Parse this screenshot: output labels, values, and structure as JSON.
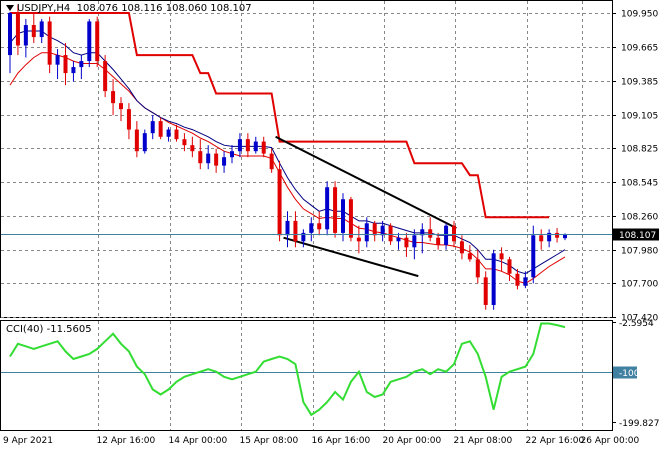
{
  "header": {
    "symbol": "USDJPY,H4",
    "ohlc": "108.076 108.116 108.060 108.107"
  },
  "price_axis": {
    "ticks": [
      "109.950",
      "109.665",
      "109.385",
      "109.105",
      "108.825",
      "108.545",
      "108.260",
      "107.980",
      "107.700",
      "107.420"
    ],
    "current_price": "108.107"
  },
  "cci_panel": {
    "label": "CCI(40)",
    "value": "-11.5605",
    "ticks": [
      "-2.5954",
      "-100",
      "-199.8274"
    ]
  },
  "time_axis": {
    "labels": [
      "9 Apr 2021",
      "12 Apr 16:00",
      "14 Apr 00:00",
      "15 Apr 08:00",
      "16 Apr 16:00",
      "20 Apr 00:00",
      "21 Apr 08:00",
      "22 Apr 16:00",
      "26 Apr 00:00"
    ]
  },
  "colors": {
    "bull_candle": "#0000cc",
    "bear_candle": "#e00000",
    "trailing_stop": "#e00000",
    "ma_fast": "#000080",
    "ma_slow": "#e00000",
    "trendline": "#000000",
    "cci_line": "#33dd33",
    "cci_level": "#4080a0",
    "price_line": "#4080a0"
  },
  "chart_data": [
    {
      "type": "candlestick",
      "title": "USDJPY,H4",
      "ylim": [
        107.42,
        110.05
      ],
      "x_labels": [
        "9 Apr 2021",
        "12 Apr 16:00",
        "14 Apr 00:00",
        "15 Apr 08:00",
        "16 Apr 16:00",
        "20 Apr 00:00",
        "21 Apr 08:00",
        "22 Apr 16:00",
        "26 Apr 00:00"
      ],
      "candles": [
        [
          109.6,
          109.96,
          109.45,
          109.95
        ],
        [
          109.95,
          110.02,
          109.6,
          109.68
        ],
        [
          109.68,
          109.9,
          109.58,
          109.85
        ],
        [
          109.85,
          109.95,
          109.7,
          109.75
        ],
        [
          109.75,
          109.9,
          109.7,
          109.88
        ],
        [
          109.88,
          109.92,
          109.45,
          109.52
        ],
        [
          109.52,
          109.65,
          109.4,
          109.6
        ],
        [
          109.6,
          109.7,
          109.35,
          109.45
        ],
        [
          109.45,
          109.55,
          109.38,
          109.5
        ],
        [
          109.5,
          109.6,
          109.4,
          109.55
        ],
        [
          109.55,
          109.9,
          109.5,
          109.88
        ],
        [
          109.88,
          109.92,
          109.5,
          109.55
        ],
        [
          109.55,
          109.6,
          109.25,
          109.3
        ],
        [
          109.3,
          109.4,
          109.1,
          109.2
        ],
        [
          109.2,
          109.25,
          109.05,
          109.15
        ],
        [
          109.15,
          109.2,
          108.9,
          108.98
        ],
        [
          108.98,
          109.05,
          108.75,
          108.8
        ],
        [
          108.8,
          108.98,
          108.78,
          108.95
        ],
        [
          108.95,
          109.1,
          108.9,
          109.05
        ],
        [
          109.05,
          109.08,
          108.9,
          108.92
        ],
        [
          108.92,
          109.0,
          108.88,
          108.98
        ],
        [
          108.98,
          109.02,
          108.88,
          108.9
        ],
        [
          108.9,
          108.95,
          108.8,
          108.85
        ],
        [
          108.85,
          108.92,
          108.75,
          108.8
        ],
        [
          108.8,
          108.9,
          108.65,
          108.7
        ],
        [
          108.7,
          108.85,
          108.65,
          108.78
        ],
        [
          108.78,
          108.82,
          108.62,
          108.68
        ],
        [
          108.68,
          108.8,
          108.62,
          108.75
        ],
        [
          108.75,
          108.85,
          108.7,
          108.8
        ],
        [
          108.8,
          108.95,
          108.75,
          108.9
        ],
        [
          108.9,
          108.95,
          108.75,
          108.8
        ],
        [
          108.8,
          108.92,
          108.78,
          108.88
        ],
        [
          108.88,
          108.92,
          108.75,
          108.78
        ],
        [
          108.78,
          108.82,
          108.62,
          108.65
        ],
        [
          108.65,
          108.72,
          108.05,
          108.1
        ],
        [
          108.1,
          108.3,
          108.0,
          108.22
        ],
        [
          108.22,
          108.3,
          108.0,
          108.05
        ],
        [
          108.05,
          108.15,
          108.0,
          108.12
        ],
        [
          108.12,
          108.25,
          108.05,
          108.2
        ],
        [
          108.2,
          108.3,
          108.1,
          108.15
        ],
        [
          108.15,
          108.55,
          108.1,
          108.5
        ],
        [
          108.5,
          108.55,
          108.08,
          108.12
        ],
        [
          108.12,
          108.45,
          108.05,
          108.4
        ],
        [
          108.4,
          108.42,
          108.05,
          108.08
        ],
        [
          108.08,
          108.18,
          107.95,
          108.05
        ],
        [
          108.05,
          108.25,
          108.0,
          108.2
        ],
        [
          108.2,
          108.22,
          108.05,
          108.1
        ],
        [
          108.1,
          108.22,
          108.05,
          108.18
        ],
        [
          108.18,
          108.2,
          108.02,
          108.05
        ],
        [
          108.05,
          108.12,
          107.98,
          108.08
        ],
        [
          108.08,
          108.12,
          107.92,
          108.0
        ],
        [
          108.0,
          108.15,
          107.9,
          108.1
        ],
        [
          108.1,
          108.2,
          107.95,
          108.15
        ],
        [
          108.15,
          108.25,
          108.05,
          108.08
        ],
        [
          108.08,
          108.12,
          107.98,
          108.02
        ],
        [
          108.02,
          108.2,
          107.98,
          108.18
        ],
        [
          108.18,
          108.22,
          108.0,
          108.05
        ],
        [
          108.05,
          108.1,
          107.9,
          107.95
        ],
        [
          107.95,
          108.02,
          107.88,
          107.9
        ],
        [
          107.9,
          107.98,
          107.7,
          107.75
        ],
        [
          107.75,
          107.8,
          107.48,
          107.52
        ],
        [
          107.52,
          107.98,
          107.48,
          107.95
        ],
        [
          107.95,
          108.0,
          107.8,
          107.9
        ],
        [
          107.9,
          107.92,
          107.72,
          107.78
        ],
        [
          107.78,
          107.82,
          107.65,
          107.68
        ],
        [
          107.68,
          107.8,
          107.66,
          107.75
        ],
        [
          107.75,
          108.18,
          107.7,
          108.1
        ],
        [
          108.1,
          108.15,
          107.98,
          108.05
        ],
        [
          108.05,
          108.15,
          108.0,
          108.12
        ],
        [
          108.12,
          108.16,
          108.04,
          108.08
        ],
        [
          108.076,
          108.116,
          108.06,
          108.107
        ]
      ],
      "trailing_stop": [
        109.95,
        109.95,
        109.95,
        109.95,
        109.95,
        109.95,
        109.95,
        109.95,
        109.95,
        109.95,
        109.95,
        109.95,
        109.95,
        109.95,
        109.95,
        109.95,
        109.6,
        109.6,
        109.6,
        109.6,
        109.6,
        109.6,
        109.6,
        109.6,
        109.45,
        109.45,
        109.28,
        109.28,
        109.28,
        109.28,
        109.28,
        109.28,
        109.28,
        109.28,
        108.88,
        108.88,
        108.88,
        108.88,
        108.88,
        108.88,
        108.88,
        108.88,
        108.88,
        108.88,
        108.88,
        108.88,
        108.88,
        108.88,
        108.88,
        108.88,
        108.88,
        108.7,
        108.7,
        108.7,
        108.7,
        108.7,
        108.7,
        108.7,
        108.6,
        108.6,
        108.25,
        108.25,
        108.25,
        108.25,
        108.25,
        108.25,
        108.25,
        108.25,
        108.25,
        null,
        null
      ],
      "ma_fast": [
        109.7,
        109.78,
        109.8,
        109.8,
        109.8,
        109.75,
        109.72,
        109.68,
        109.62,
        109.6,
        109.62,
        109.62,
        109.55,
        109.48,
        109.4,
        109.32,
        109.22,
        109.16,
        109.12,
        109.08,
        109.05,
        109.03,
        109.0,
        108.98,
        108.95,
        108.92,
        108.88,
        108.85,
        108.84,
        108.84,
        108.84,
        108.84,
        108.84,
        108.83,
        108.7,
        108.58,
        108.48,
        108.4,
        108.35,
        108.3,
        108.32,
        108.3,
        108.3,
        108.26,
        108.22,
        108.22,
        108.2,
        108.2,
        108.18,
        108.16,
        108.14,
        108.12,
        108.12,
        108.12,
        108.1,
        108.1,
        108.1,
        108.07,
        108.04,
        107.98,
        107.9,
        107.9,
        107.88,
        107.85,
        107.8,
        107.78,
        107.82,
        107.86,
        107.9,
        107.94,
        107.98
      ],
      "ma_slow": [
        109.35,
        109.45,
        109.52,
        109.58,
        109.62,
        109.62,
        109.6,
        109.58,
        109.55,
        109.53,
        109.53,
        109.53,
        109.48,
        109.42,
        109.36,
        109.3,
        109.22,
        109.16,
        109.12,
        109.08,
        109.04,
        109.01,
        108.98,
        108.95,
        108.91,
        108.88,
        108.84,
        108.8,
        108.78,
        108.76,
        108.76,
        108.76,
        108.76,
        108.74,
        108.62,
        108.5,
        108.4,
        108.32,
        108.28,
        108.24,
        108.25,
        108.24,
        108.24,
        108.2,
        108.16,
        108.15,
        108.13,
        108.12,
        108.1,
        108.08,
        108.06,
        108.04,
        108.04,
        108.03,
        108.02,
        108.02,
        108.01,
        107.99,
        107.96,
        107.9,
        107.82,
        107.82,
        107.8,
        107.77,
        107.72,
        107.7,
        107.74,
        107.79,
        107.84,
        107.88,
        107.92
      ],
      "trendlines": [
        {
          "from_index": 33.5,
          "from": 108.92,
          "to_index": 56.3,
          "to": 108.16
        },
        {
          "from_index": 34.5,
          "from": 108.08,
          "to_index": 51.5,
          "to": 107.76
        }
      ]
    },
    {
      "type": "line",
      "title": "CCI(40)",
      "ylim": [
        -215,
        0
      ],
      "levels": [
        -100
      ],
      "values": [
        -70,
        -45,
        -50,
        -55,
        -50,
        -45,
        -40,
        -60,
        -75,
        -70,
        -65,
        -55,
        -40,
        -25,
        -45,
        -60,
        -90,
        -105,
        -135,
        -145,
        -135,
        -120,
        -110,
        -105,
        -100,
        -95,
        -100,
        -110,
        -115,
        -110,
        -105,
        -100,
        -80,
        -75,
        -70,
        -75,
        -85,
        -160,
        -185,
        -175,
        -160,
        -140,
        -155,
        -120,
        -100,
        -140,
        -150,
        -145,
        -120,
        -115,
        -110,
        -100,
        -95,
        -105,
        -95,
        -100,
        -85,
        -45,
        -40,
        -65,
        -110,
        -175,
        -110,
        -100,
        -95,
        -90,
        -65,
        -5,
        -5,
        -8,
        -12
      ]
    }
  ]
}
